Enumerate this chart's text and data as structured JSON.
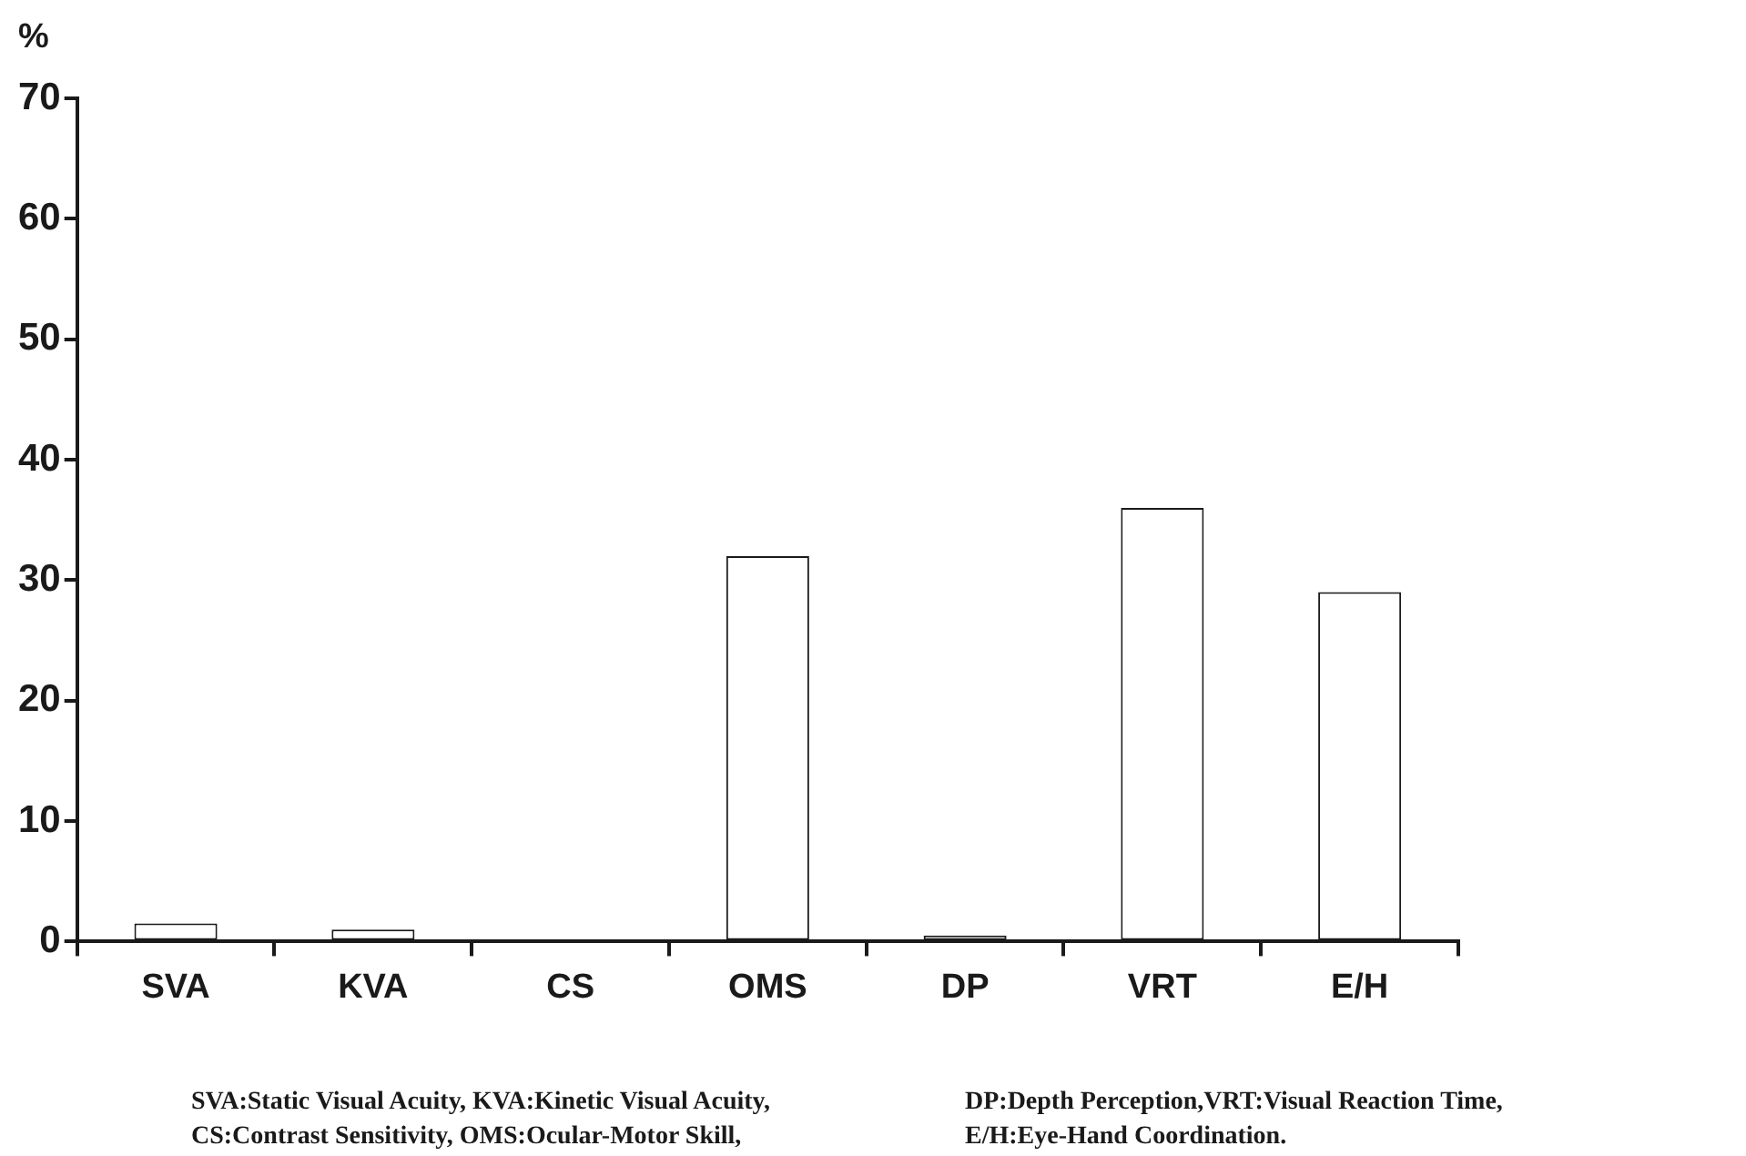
{
  "chart_data": {
    "type": "bar",
    "ylabel": "%",
    "categories": [
      "SVA",
      "KVA",
      "CS",
      "OMS",
      "DP",
      "VRT",
      "E/H"
    ],
    "values": [
      1.5,
      1,
      0,
      32,
      0.5,
      36,
      29
    ],
    "color": "#ffffff",
    "ylim": [
      0,
      70
    ],
    "yticks": [
      0,
      10,
      20,
      30,
      40,
      50,
      60,
      70
    ],
    "grid": false,
    "annotations": [
      "SVA:Static Visual Acuity, KVA:Kinetic Visual Acuity,",
      "CS:Contrast Sensitivity, OMS:Ocular-Motor Skill,",
      "DP:Depth Perception,VRT:Visual Reaction Time,",
      "E/H:Eye-Hand Coordination."
    ]
  }
}
